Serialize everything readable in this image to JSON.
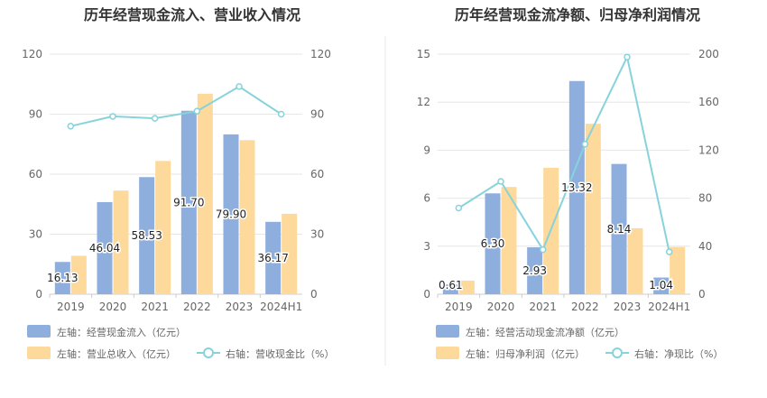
{
  "colors": {
    "bar1": "#8eaedd",
    "bar2": "#fdd99b",
    "line": "#86d3db",
    "grid": "#e6e6e6",
    "axis_text": "#666666",
    "title": "#333333",
    "divider": "#e8e8e8"
  },
  "chart_data": [
    {
      "type": "bar",
      "title": "历年经营现金流入、营业收入情况",
      "categories": [
        "2019",
        "2020",
        "2021",
        "2022",
        "2023",
        "2024H1"
      ],
      "y_left": {
        "ticks": [
          "0",
          "30",
          "60",
          "90",
          "120"
        ],
        "min": 0,
        "max": 120
      },
      "y_right": {
        "ticks": [
          "0",
          "30",
          "60",
          "90",
          "120"
        ],
        "min": 0,
        "max": 120
      },
      "series": [
        {
          "name": "左轴：经营现金流入（亿元）",
          "kind": "bar",
          "axis": "left",
          "values": [
            16.13,
            46.04,
            58.53,
            91.7,
            79.9,
            36.17
          ],
          "labels": [
            "16.13",
            "46.04",
            "58.53",
            "91.70",
            "79.90",
            "36.17"
          ]
        },
        {
          "name": "左轴：营业总收入（亿元）",
          "kind": "bar",
          "axis": "left",
          "values": [
            19.2,
            51.8,
            66.6,
            100.2,
            77.0,
            40.2
          ]
        },
        {
          "name": "右轴：营收现金比（%）",
          "kind": "line",
          "axis": "right",
          "values": [
            84.0,
            88.9,
            87.9,
            91.5,
            103.8,
            90.0
          ]
        }
      ],
      "legend": {
        "placement": "bottom-left",
        "rows": [
          [
            "左轴：经营现金流入（亿元）"
          ],
          [
            "左轴：营业总收入（亿元）",
            "右轴：营收现金比（%）"
          ]
        ]
      }
    },
    {
      "type": "bar",
      "title": "历年经营现金流净额、归母净利润情况",
      "categories": [
        "2019",
        "2020",
        "2021",
        "2022",
        "2023",
        "2024H1"
      ],
      "y_left": {
        "ticks": [
          "0",
          "3",
          "6",
          "9",
          "12",
          "15"
        ],
        "min": 0,
        "max": 15
      },
      "y_right": {
        "ticks": [
          "0",
          "40",
          "80",
          "120",
          "160",
          "200"
        ],
        "min": 0,
        "max": 200
      },
      "series": [
        {
          "name": "左轴：经营活动现金流净额（亿元）",
          "kind": "bar",
          "axis": "left",
          "values": [
            0.61,
            6.3,
            2.93,
            13.32,
            8.14,
            1.04
          ],
          "labels": [
            "0.61",
            "6.30",
            "2.93",
            "13.32",
            "8.14",
            "1.04"
          ]
        },
        {
          "name": "左轴：归母净利润（亿元）",
          "kind": "bar",
          "axis": "left",
          "values": [
            0.85,
            6.7,
            7.9,
            10.65,
            4.12,
            2.95
          ]
        },
        {
          "name": "右轴：净现比（%）",
          "kind": "line",
          "axis": "right",
          "values": [
            71.8,
            94.0,
            37.1,
            125.0,
            197.6,
            35.3
          ]
        }
      ],
      "legend": {
        "placement": "bottom-left",
        "rows": [
          [
            "左轴：经营活动现金流净额（亿元）"
          ],
          [
            "左轴：归母净利润（亿元）",
            "右轴：净现比（%）"
          ]
        ]
      }
    }
  ]
}
